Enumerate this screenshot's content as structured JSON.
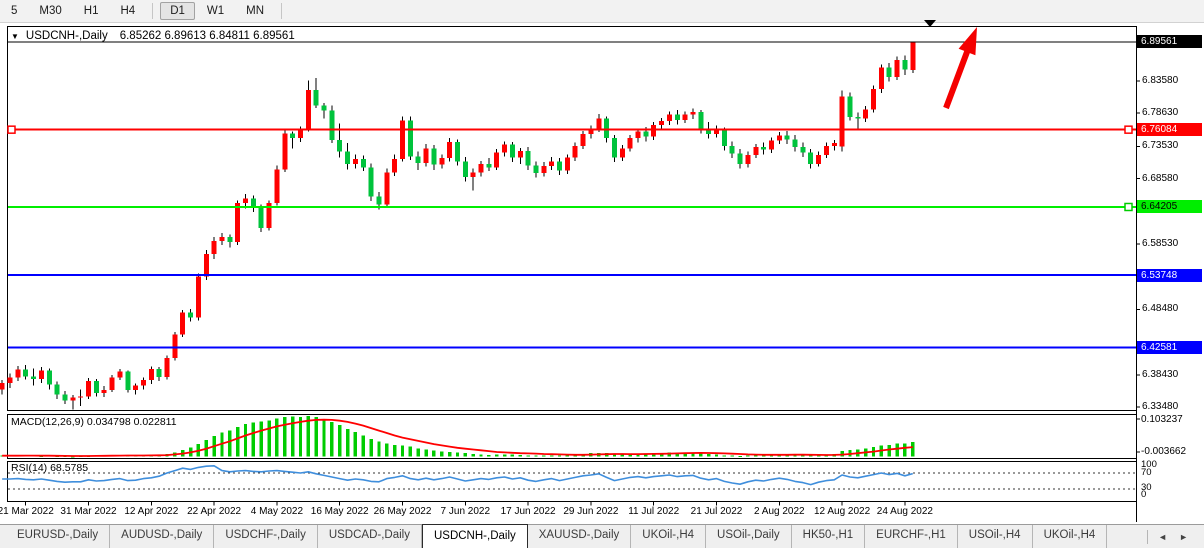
{
  "toolbar": {
    "buttons": [
      {
        "label": "5",
        "active": false
      },
      {
        "label": "M30",
        "active": false
      },
      {
        "label": "H1",
        "active": false
      },
      {
        "label": "H4",
        "active": false
      },
      {
        "sep": true
      },
      {
        "label": "D1",
        "active": true
      },
      {
        "label": "W1",
        "active": false
      },
      {
        "label": "MN",
        "active": false
      },
      {
        "sep": true
      }
    ]
  },
  "chart_data": {
    "type": "candlestick",
    "title": "USDCNH-,Daily",
    "ohlc_display": "6.85262 6.89613 6.84811 6.89561",
    "open": 6.85262,
    "high": 6.89613,
    "low": 6.84811,
    "close": 6.89561,
    "price_axis_ticks": [
      "6.83580",
      "6.78630",
      "6.73530",
      "6.68580",
      "6.58530",
      "6.48480",
      "6.38430",
      "6.33480"
    ],
    "x_labels": [
      "21 Mar 2022",
      "31 Mar 2022",
      "12 Apr 2022",
      "22 Apr 2022",
      "4 May 2022",
      "16 May 2022",
      "26 May 2022",
      "7 Jun 2022",
      "17 Jun 2022",
      "29 Jun 2022",
      "11 Jul 2022",
      "21 Jul 2022",
      "2 Aug 2022",
      "12 Aug 2022",
      "24 Aug 2022"
    ],
    "hlines": [
      {
        "price": 6.89561,
        "label": "6.89561",
        "color": "#000000",
        "text": "#ffffff",
        "type": "current-price"
      },
      {
        "price": 6.76084,
        "label": "6.76084",
        "color": "#ff0000",
        "text": "#ffffff",
        "type": "horizontal-line"
      },
      {
        "price": 6.64205,
        "label": "6.64205",
        "color": "#00ee00",
        "text": "#000000",
        "type": "horizontal-line"
      },
      {
        "price": 6.53748,
        "label": "6.53748",
        "color": "#0000ff",
        "text": "#ffffff",
        "type": "horizontal-line"
      },
      {
        "price": 6.42581,
        "label": "6.42581",
        "color": "#0000ff",
        "text": "#ffffff",
        "type": "horizontal-line"
      }
    ],
    "colors": {
      "up": "#ff0000",
      "down": "#00c33c",
      "wick": "#000000",
      "macd_hist": "#00cc00",
      "macd_signal": "#ff0000",
      "rsi": "#3f8edc",
      "annotation_arrow": "#f40000",
      "frame": "#000000"
    },
    "candles": [
      [
        6.362,
        6.376,
        6.354,
        6.372
      ],
      [
        6.372,
        6.386,
        6.364,
        6.38
      ],
      [
        6.38,
        6.398,
        6.375,
        6.392
      ],
      [
        6.392,
        6.399,
        6.377,
        6.382
      ],
      [
        6.382,
        6.394,
        6.368,
        6.378
      ],
      [
        6.378,
        6.396,
        6.372,
        6.391
      ],
      [
        6.391,
        6.394,
        6.362,
        6.369
      ],
      [
        6.369,
        6.374,
        6.347,
        6.354
      ],
      [
        6.354,
        6.359,
        6.339,
        6.345
      ],
      [
        6.345,
        6.353,
        6.331,
        6.349
      ],
      [
        6.349,
        6.362,
        6.336,
        6.351
      ],
      [
        6.351,
        6.379,
        6.347,
        6.375
      ],
      [
        6.375,
        6.378,
        6.351,
        6.356
      ],
      [
        6.356,
        6.367,
        6.35,
        6.361
      ],
      [
        6.361,
        6.384,
        6.358,
        6.38
      ],
      [
        6.38,
        6.393,
        6.376,
        6.389
      ],
      [
        6.389,
        6.391,
        6.357,
        6.361
      ],
      [
        6.361,
        6.371,
        6.354,
        6.368
      ],
      [
        6.368,
        6.38,
        6.362,
        6.376
      ],
      [
        6.376,
        6.397,
        6.37,
        6.393
      ],
      [
        6.393,
        6.396,
        6.375,
        6.381
      ],
      [
        6.381,
        6.414,
        6.377,
        6.41
      ],
      [
        6.41,
        6.45,
        6.406,
        6.446
      ],
      [
        6.446,
        6.484,
        6.442,
        6.48
      ],
      [
        6.48,
        6.485,
        6.466,
        6.472
      ],
      [
        6.472,
        6.54,
        6.468,
        6.535
      ],
      [
        6.535,
        6.576,
        6.53,
        6.57
      ],
      [
        6.57,
        6.596,
        6.562,
        6.59
      ],
      [
        6.59,
        6.602,
        6.584,
        6.596
      ],
      [
        6.596,
        6.6,
        6.58,
        6.588
      ],
      [
        6.588,
        6.652,
        6.584,
        6.648
      ],
      [
        6.648,
        6.662,
        6.64,
        6.655
      ],
      [
        6.655,
        6.66,
        6.634,
        6.642
      ],
      [
        6.642,
        6.646,
        6.604,
        6.61
      ],
      [
        6.61,
        6.652,
        6.606,
        6.648
      ],
      [
        6.648,
        6.706,
        6.644,
        6.7
      ],
      [
        6.7,
        6.76,
        6.696,
        6.755
      ],
      [
        6.755,
        6.758,
        6.732,
        6.748
      ],
      [
        6.748,
        6.766,
        6.742,
        6.762
      ],
      [
        6.762,
        6.836,
        6.758,
        6.822
      ],
      [
        6.822,
        6.84,
        6.794,
        6.798
      ],
      [
        6.798,
        6.802,
        6.778,
        6.79
      ],
      [
        6.79,
        6.798,
        6.74,
        6.745
      ],
      [
        6.745,
        6.77,
        6.718,
        6.727
      ],
      [
        6.727,
        6.74,
        6.7,
        6.708
      ],
      [
        6.708,
        6.723,
        6.701,
        6.716
      ],
      [
        6.716,
        6.721,
        6.697,
        6.703
      ],
      [
        6.703,
        6.709,
        6.651,
        6.658
      ],
      [
        6.658,
        6.665,
        6.638,
        6.646
      ],
      [
        6.646,
        6.701,
        6.641,
        6.695
      ],
      [
        6.695,
        6.723,
        6.69,
        6.716
      ],
      [
        6.716,
        6.781,
        6.712,
        6.775
      ],
      [
        6.775,
        6.781,
        6.714,
        6.72
      ],
      [
        6.72,
        6.727,
        6.699,
        6.71
      ],
      [
        6.71,
        6.739,
        6.704,
        6.732
      ],
      [
        6.732,
        6.737,
        6.699,
        6.707
      ],
      [
        6.707,
        6.723,
        6.701,
        6.717
      ],
      [
        6.717,
        6.748,
        6.712,
        6.742
      ],
      [
        6.742,
        6.746,
        6.706,
        6.712
      ],
      [
        6.712,
        6.719,
        6.681,
        6.688
      ],
      [
        6.688,
        6.701,
        6.667,
        6.695
      ],
      [
        6.695,
        6.713,
        6.689,
        6.708
      ],
      [
        6.708,
        6.717,
        6.697,
        6.703
      ],
      [
        6.703,
        6.731,
        6.699,
        6.726
      ],
      [
        6.726,
        6.743,
        6.72,
        6.738
      ],
      [
        6.738,
        6.742,
        6.711,
        6.718
      ],
      [
        6.718,
        6.733,
        6.708,
        6.728
      ],
      [
        6.728,
        6.734,
        6.699,
        6.706
      ],
      [
        6.706,
        6.712,
        6.687,
        6.694
      ],
      [
        6.694,
        6.711,
        6.689,
        6.705
      ],
      [
        6.705,
        6.719,
        6.699,
        6.712
      ],
      [
        6.712,
        6.717,
        6.691,
        6.698
      ],
      [
        6.698,
        6.723,
        6.693,
        6.718
      ],
      [
        6.718,
        6.741,
        6.713,
        6.736
      ],
      [
        6.736,
        6.759,
        6.731,
        6.754
      ],
      [
        6.754,
        6.767,
        6.747,
        6.762
      ],
      [
        6.762,
        6.785,
        6.757,
        6.778
      ],
      [
        6.778,
        6.781,
        6.741,
        6.748
      ],
      [
        6.748,
        6.753,
        6.711,
        6.718
      ],
      [
        6.718,
        6.737,
        6.713,
        6.732
      ],
      [
        6.732,
        6.753,
        6.727,
        6.748
      ],
      [
        6.748,
        6.763,
        6.741,
        6.758
      ],
      [
        6.758,
        6.765,
        6.743,
        6.75
      ],
      [
        6.75,
        6.773,
        6.745,
        6.768
      ],
      [
        6.768,
        6.779,
        6.761,
        6.774
      ],
      [
        6.774,
        6.789,
        6.768,
        6.784
      ],
      [
        6.784,
        6.791,
        6.769,
        6.776
      ],
      [
        6.776,
        6.789,
        6.771,
        6.784
      ],
      [
        6.784,
        6.793,
        6.777,
        6.788
      ],
      [
        6.788,
        6.791,
        6.755,
        6.762
      ],
      [
        6.762,
        6.773,
        6.747,
        6.754
      ],
      [
        6.754,
        6.767,
        6.749,
        6.761
      ],
      [
        6.761,
        6.764,
        6.729,
        6.736
      ],
      [
        6.736,
        6.743,
        6.717,
        6.724
      ],
      [
        6.724,
        6.731,
        6.701,
        6.708
      ],
      [
        6.708,
        6.727,
        6.703,
        6.722
      ],
      [
        6.722,
        6.739,
        6.717,
        6.734
      ],
      [
        6.734,
        6.741,
        6.723,
        6.73
      ],
      [
        6.73,
        6.749,
        6.725,
        6.744
      ],
      [
        6.744,
        6.757,
        6.739,
        6.752
      ],
      [
        6.752,
        6.759,
        6.739,
        6.746
      ],
      [
        6.746,
        6.753,
        6.727,
        6.734
      ],
      [
        6.734,
        6.741,
        6.719,
        6.726
      ],
      [
        6.726,
        6.731,
        6.701,
        6.708
      ],
      [
        6.708,
        6.727,
        6.704,
        6.722
      ],
      [
        6.722,
        6.741,
        6.717,
        6.736
      ],
      [
        6.736,
        6.745,
        6.729,
        6.74
      ],
      [
        6.735,
        6.821,
        6.727,
        6.812
      ],
      [
        6.812,
        6.818,
        6.775,
        6.78
      ],
      [
        6.78,
        6.787,
        6.761,
        6.778
      ],
      [
        6.778,
        6.797,
        6.773,
        6.792
      ],
      [
        6.792,
        6.829,
        6.787,
        6.823
      ],
      [
        6.823,
        6.861,
        6.817,
        6.856
      ],
      [
        6.856,
        6.863,
        6.835,
        6.842
      ],
      [
        6.842,
        6.873,
        6.837,
        6.868
      ],
      [
        6.868,
        6.875,
        6.845,
        6.853
      ],
      [
        6.8526,
        6.8961,
        6.8481,
        6.8956
      ]
    ],
    "indicators": {
      "macd": {
        "label": "MACD(12,26,9) 0.034798 0.022811",
        "value_main": 0.034798,
        "value_signal": 0.022811,
        "scale_max": 0.103237,
        "scale_min": -0.003662,
        "scale_max_label": "0.103237",
        "scale_min_label": "-0.003662",
        "histogram": [
          0.002,
          0.002,
          0.0025,
          0.003,
          0.002,
          0.0015,
          0.002,
          0.001,
          0.0008,
          0.0005,
          0.001,
          0.0015,
          0.003,
          0.0035,
          0.003,
          0.0035,
          0.004,
          0.003,
          0.0025,
          0.004,
          0.0045,
          0.006,
          0.01,
          0.016,
          0.022,
          0.03,
          0.04,
          0.05,
          0.058,
          0.063,
          0.072,
          0.079,
          0.083,
          0.085,
          0.088,
          0.092,
          0.096,
          0.097,
          0.096,
          0.098,
          0.096,
          0.091,
          0.084,
          0.076,
          0.067,
          0.059,
          0.051,
          0.043,
          0.036,
          0.031,
          0.028,
          0.027,
          0.024,
          0.02,
          0.017,
          0.014,
          0.012,
          0.011,
          0.01,
          0.008,
          0.006,
          0.005,
          0.004,
          0.0045,
          0.005,
          0.0045,
          0.004,
          0.003,
          0.002,
          0.002,
          0.0025,
          0.002,
          0.003,
          0.004,
          0.006,
          0.008,
          0.009,
          0.008,
          0.006,
          0.005,
          0.006,
          0.007,
          0.007,
          0.008,
          0.009,
          0.01,
          0.009,
          0.009,
          0.01,
          0.008,
          0.006,
          0.005,
          0.003,
          0.002,
          0.001,
          0.002,
          0.003,
          0.003,
          0.004,
          0.005,
          0.005,
          0.004,
          0.003,
          0.002,
          0.003,
          0.005,
          0.006,
          0.013,
          0.016,
          0.017,
          0.019,
          0.023,
          0.027,
          0.028,
          0.031,
          0.032,
          0.0348
        ],
        "signal": [
          0.002,
          0.002,
          0.002,
          0.0022,
          0.0022,
          0.002,
          0.002,
          0.0018,
          0.0015,
          0.0013,
          0.0012,
          0.0013,
          0.0015,
          0.0018,
          0.002,
          0.0022,
          0.0025,
          0.0025,
          0.0024,
          0.0026,
          0.003,
          0.0035,
          0.005,
          0.007,
          0.01,
          0.014,
          0.019,
          0.025,
          0.031,
          0.037,
          0.044,
          0.051,
          0.057,
          0.063,
          0.068,
          0.073,
          0.077,
          0.081,
          0.084,
          0.087,
          0.089,
          0.0895,
          0.089,
          0.087,
          0.084,
          0.08,
          0.075,
          0.069,
          0.063,
          0.057,
          0.051,
          0.046,
          0.042,
          0.038,
          0.034,
          0.03,
          0.027,
          0.024,
          0.021,
          0.019,
          0.017,
          0.015,
          0.013,
          0.011,
          0.01,
          0.009,
          0.008,
          0.0075,
          0.007,
          0.006,
          0.0055,
          0.005,
          0.0045,
          0.0042,
          0.0042,
          0.0045,
          0.005,
          0.0055,
          0.006,
          0.006,
          0.0058,
          0.0058,
          0.006,
          0.0062,
          0.0065,
          0.007,
          0.0075,
          0.008,
          0.0085,
          0.0088,
          0.0085,
          0.008,
          0.0075,
          0.0068,
          0.006,
          0.0052,
          0.0046,
          0.0042,
          0.004,
          0.004,
          0.0042,
          0.0044,
          0.0044,
          0.0042,
          0.0038,
          0.0036,
          0.0038,
          0.0045,
          0.006,
          0.008,
          0.01,
          0.012,
          0.0145,
          0.017,
          0.019,
          0.021,
          0.0228
        ]
      },
      "rsi": {
        "label": "RSI(14) 68.5785",
        "value": 68.5785,
        "scale_labels": [
          "100",
          "70",
          "30",
          "0"
        ],
        "level_lines": [
          70,
          30
        ],
        "values": [
          55,
          55,
          56,
          54,
          53,
          55,
          52,
          49,
          47,
          48,
          48,
          53,
          50,
          51,
          54,
          56,
          51,
          52,
          56,
          58,
          62,
          70,
          76,
          82,
          79,
          84,
          87,
          88,
          76,
          73,
          75,
          76,
          74,
          73,
          75,
          76,
          74,
          72,
          70,
          73,
          68,
          64,
          60,
          56,
          52,
          55,
          53,
          49,
          48,
          56,
          59,
          63,
          56,
          53,
          57,
          53,
          56,
          60,
          55,
          50,
          53,
          56,
          54,
          58,
          60,
          55,
          58,
          52,
          49,
          53,
          56,
          51,
          55,
          59,
          63,
          65,
          68,
          59,
          51,
          55,
          59,
          61,
          58,
          61,
          63,
          65,
          61,
          63,
          64,
          57,
          53,
          56,
          49,
          45,
          42,
          48,
          52,
          50,
          54,
          57,
          54,
          49,
          46,
          41,
          47,
          51,
          53,
          65,
          60,
          58,
          62,
          66,
          70,
          66,
          69,
          63,
          68.6
        ]
      }
    },
    "annotations": {
      "trend_arrow": {
        "shape": "arrow-up-right",
        "color": "#f40000"
      },
      "bar_end_marker": {
        "shape": "triangle-down",
        "color": "#000000"
      }
    }
  },
  "tabs": {
    "items": [
      "EURUSD-,Daily",
      "AUDUSD-,Daily",
      "USDCHF-,Daily",
      "USDCAD-,Daily",
      "USDCNH-,Daily",
      "XAUUSD-,Daily",
      "UKOil-,H4",
      "USOil-,Daily",
      "HK50-,H1",
      "EURCHF-,H1",
      "USOil-,H4",
      "UKOil-,H4"
    ],
    "active": "USDCNH-,Daily",
    "scroll_left_icon": "◄",
    "scroll_right_icon": "►"
  }
}
